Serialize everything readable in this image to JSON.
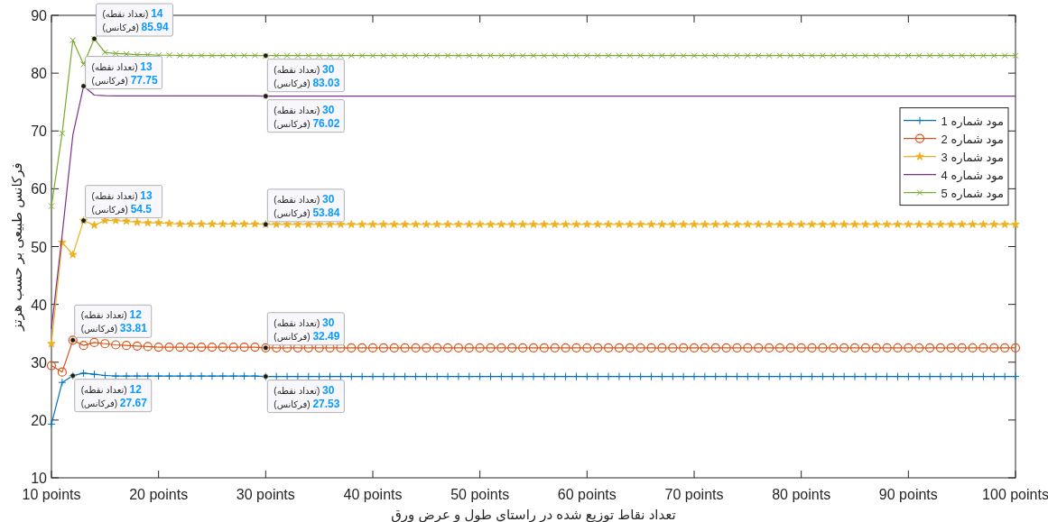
{
  "chart_data": {
    "type": "line",
    "xlabel": "تعداد نقاط توزیع شده در راستای طول و عرض ورق",
    "ylabel": "فرکانس طبیعی بر حسب هرتز",
    "x": [
      10,
      11,
      12,
      13,
      14,
      15,
      16,
      17,
      18,
      19,
      20,
      21,
      22,
      23,
      24,
      25,
      26,
      27,
      28,
      29,
      30,
      31,
      32,
      33,
      34,
      35,
      36,
      37,
      38,
      39,
      40,
      41,
      42,
      43,
      44,
      45,
      46,
      47,
      48,
      49,
      50,
      51,
      52,
      53,
      54,
      55,
      56,
      57,
      58,
      59,
      60,
      61,
      62,
      63,
      64,
      65,
      66,
      67,
      68,
      69,
      70,
      71,
      72,
      73,
      74,
      75,
      76,
      77,
      78,
      79,
      80,
      81,
      82,
      83,
      84,
      85,
      86,
      87,
      88,
      89,
      90,
      91,
      92,
      93,
      94,
      95,
      96,
      97,
      98,
      99,
      100
    ],
    "xlim": [
      10,
      100
    ],
    "ylim": [
      10,
      90
    ],
    "xticks": [
      {
        "value": 10,
        "label": "10 points"
      },
      {
        "value": 20,
        "label": "20 points"
      },
      {
        "value": 30,
        "label": "30 points"
      },
      {
        "value": 40,
        "label": "40 points"
      },
      {
        "value": 50,
        "label": "50 points"
      },
      {
        "value": 60,
        "label": "60 points"
      },
      {
        "value": 70,
        "label": "70 points"
      },
      {
        "value": 80,
        "label": "80 points"
      },
      {
        "value": 90,
        "label": "90 points"
      },
      {
        "value": 100,
        "label": "100 points"
      }
    ],
    "yticks": [
      10,
      20,
      30,
      40,
      50,
      60,
      70,
      80,
      90
    ],
    "grid": false,
    "legend": "right",
    "series": [
      {
        "name": "مود شماره 1",
        "color": "#0072bd",
        "marker": "plus",
        "values": [
          19.3,
          26.5,
          27.67,
          28.1,
          27.9,
          27.7,
          27.6,
          27.6,
          27.6,
          27.6,
          27.6,
          27.6,
          27.6,
          27.6,
          27.6,
          27.6,
          27.6,
          27.6,
          27.6,
          27.6,
          27.53,
          27.53,
          27.53,
          27.53,
          27.53,
          27.53,
          27.53,
          27.53,
          27.53,
          27.53,
          27.53,
          27.53,
          27.53,
          27.53,
          27.53,
          27.53,
          27.53,
          27.53,
          27.53,
          27.53,
          27.53,
          27.53,
          27.53,
          27.53,
          27.53,
          27.53,
          27.53,
          27.53,
          27.53,
          27.53,
          27.53,
          27.53,
          27.53,
          27.53,
          27.53,
          27.53,
          27.53,
          27.53,
          27.53,
          27.53,
          27.53,
          27.53,
          27.53,
          27.53,
          27.53,
          27.53,
          27.53,
          27.53,
          27.53,
          27.53,
          27.53,
          27.53,
          27.53,
          27.53,
          27.53,
          27.53,
          27.53,
          27.53,
          27.53,
          27.53,
          27.53,
          27.53,
          27.53,
          27.53,
          27.53,
          27.53,
          27.53,
          27.53,
          27.53,
          27.53,
          27.53
        ]
      },
      {
        "name": "مود شماره 2",
        "color": "#d95319",
        "marker": "circle",
        "values": [
          29.4,
          28.3,
          33.81,
          32.9,
          33.4,
          33.2,
          33.0,
          32.9,
          32.8,
          32.7,
          32.6,
          32.6,
          32.6,
          32.6,
          32.6,
          32.6,
          32.6,
          32.6,
          32.6,
          32.6,
          32.49,
          32.49,
          32.49,
          32.49,
          32.49,
          32.49,
          32.49,
          32.49,
          32.49,
          32.49,
          32.49,
          32.49,
          32.49,
          32.49,
          32.49,
          32.49,
          32.49,
          32.49,
          32.49,
          32.49,
          32.49,
          32.49,
          32.49,
          32.49,
          32.49,
          32.49,
          32.49,
          32.49,
          32.49,
          32.49,
          32.49,
          32.49,
          32.49,
          32.49,
          32.49,
          32.49,
          32.49,
          32.49,
          32.49,
          32.49,
          32.49,
          32.49,
          32.49,
          32.49,
          32.49,
          32.49,
          32.49,
          32.49,
          32.49,
          32.49,
          32.49,
          32.49,
          32.49,
          32.49,
          32.49,
          32.49,
          32.49,
          32.49,
          32.49,
          32.49,
          32.49,
          32.49,
          32.49,
          32.49,
          32.49,
          32.49,
          32.49,
          32.49,
          32.49,
          32.49,
          32.49
        ]
      },
      {
        "name": "مود شماره 3",
        "color": "#edb120",
        "marker": "star",
        "values": [
          33.2,
          50.7,
          48.6,
          54.5,
          53.7,
          54.5,
          54.5,
          54.4,
          54.2,
          54.1,
          54.1,
          54.0,
          53.9,
          53.9,
          53.9,
          53.9,
          53.9,
          53.9,
          53.9,
          53.9,
          53.84,
          53.84,
          53.84,
          53.84,
          53.84,
          53.84,
          53.84,
          53.84,
          53.84,
          53.84,
          53.84,
          53.84,
          53.84,
          53.84,
          53.84,
          53.84,
          53.84,
          53.84,
          53.84,
          53.84,
          53.84,
          53.84,
          53.84,
          53.84,
          53.84,
          53.84,
          53.84,
          53.84,
          53.84,
          53.84,
          53.84,
          53.84,
          53.84,
          53.84,
          53.84,
          53.84,
          53.84,
          53.84,
          53.84,
          53.84,
          53.84,
          53.84,
          53.84,
          53.84,
          53.84,
          53.84,
          53.84,
          53.84,
          53.84,
          53.84,
          53.84,
          53.84,
          53.84,
          53.84,
          53.84,
          53.84,
          53.84,
          53.84,
          53.84,
          53.84,
          53.84,
          53.84,
          53.84,
          53.84,
          53.84,
          53.84,
          53.84,
          53.84,
          53.84,
          53.84,
          53.84
        ]
      },
      {
        "name": "مود شماره 4",
        "color": "#7e2f8e",
        "marker": "none",
        "values": [
          35.8,
          52,
          69.3,
          77.75,
          76.2,
          76.1,
          76.05,
          76.05,
          76.05,
          76.05,
          76.05,
          76.05,
          76.05,
          76.05,
          76.05,
          76.05,
          76.05,
          76.05,
          76.05,
          76.05,
          76.02,
          76.02,
          76.02,
          76.02,
          76.02,
          76.02,
          76.02,
          76.02,
          76.02,
          76.02,
          76.02,
          76.02,
          76.02,
          76.02,
          76.02,
          76.02,
          76.02,
          76.02,
          76.02,
          76.02,
          76.02,
          76.02,
          76.02,
          76.02,
          76.02,
          76.02,
          76.02,
          76.02,
          76.02,
          76.02,
          76.02,
          76.02,
          76.02,
          76.02,
          76.02,
          76.02,
          76.02,
          76.02,
          76.02,
          76.02,
          76.02,
          76.02,
          76.02,
          76.02,
          76.02,
          76.02,
          76.02,
          76.02,
          76.02,
          76.02,
          76.02,
          76.02,
          76.02,
          76.02,
          76.02,
          76.02,
          76.02,
          76.02,
          76.02,
          76.02,
          76.02,
          76.02,
          76.02,
          76.02,
          76.02,
          76.02,
          76.02,
          76.02,
          76.02,
          76.02,
          76.02
        ]
      },
      {
        "name": "مود شماره 5",
        "color": "#77ac30",
        "marker": "cross",
        "values": [
          57,
          69.6,
          85.7,
          81.5,
          85.94,
          83.6,
          83.4,
          83.3,
          83.2,
          83.2,
          83.1,
          83.1,
          83.05,
          83.05,
          83.05,
          83.05,
          83.05,
          83.05,
          83.05,
          83.05,
          83.03,
          83.03,
          83.03,
          83.03,
          83.03,
          83.03,
          83.03,
          83.03,
          83.03,
          83.03,
          83.03,
          83.03,
          83.03,
          83.03,
          83.03,
          83.03,
          83.03,
          83.03,
          83.03,
          83.03,
          83.03,
          83.03,
          83.03,
          83.03,
          83.03,
          83.03,
          83.03,
          83.03,
          83.03,
          83.03,
          83.03,
          83.03,
          83.03,
          83.03,
          83.03,
          83.03,
          83.03,
          83.03,
          83.03,
          83.03,
          83.03,
          83.03,
          83.03,
          83.03,
          83.03,
          83.03,
          83.03,
          83.03,
          83.03,
          83.03,
          83.03,
          83.03,
          83.03,
          83.03,
          83.03,
          83.03,
          83.03,
          83.03,
          83.03,
          83.03,
          83.03,
          83.03,
          83.03,
          83.03,
          83.03,
          83.03,
          83.03,
          83.03,
          83.03,
          83.03,
          83.03
        ]
      }
    ],
    "annotations": [
      {
        "text": "(تعداد نقطه) 14\n(فرکانس) 85.94",
        "x": 14,
        "y": 85.94
      },
      {
        "text": "(تعداد نقطه) 13\n(فرکانس) 77.75",
        "x": 13,
        "y": 77.75
      },
      {
        "text": "(تعداد نقطه) 13\n(فرکانس) 54.5",
        "x": 13,
        "y": 54.5
      },
      {
        "text": "(تعداد نقطه) 12\n(فرکانس) 33.81",
        "x": 12,
        "y": 33.81
      },
      {
        "text": "(تعداد نقطه) 12\n(فرکانس) 27.67",
        "x": 12,
        "y": 27.67
      },
      {
        "text": "(تعداد نقطه) 30\n(فرکانس) 83.03",
        "x": 30,
        "y": 83.03
      },
      {
        "text": "(تعداد نقطه) 30\n(فرکانس) 76.02",
        "x": 30,
        "y": 76.02
      },
      {
        "text": "(تعداد نقطه) 30\n(فرکانس) 53.84",
        "x": 30,
        "y": 53.84
      },
      {
        "text": "(تعداد نقطه) 30\n(فرکانس) 32.49",
        "x": 30,
        "y": 32.49
      },
      {
        "text": "(تعداد نقطه) 30\n(فرکانس) 27.53",
        "x": 30,
        "y": 27.53
      }
    ]
  }
}
